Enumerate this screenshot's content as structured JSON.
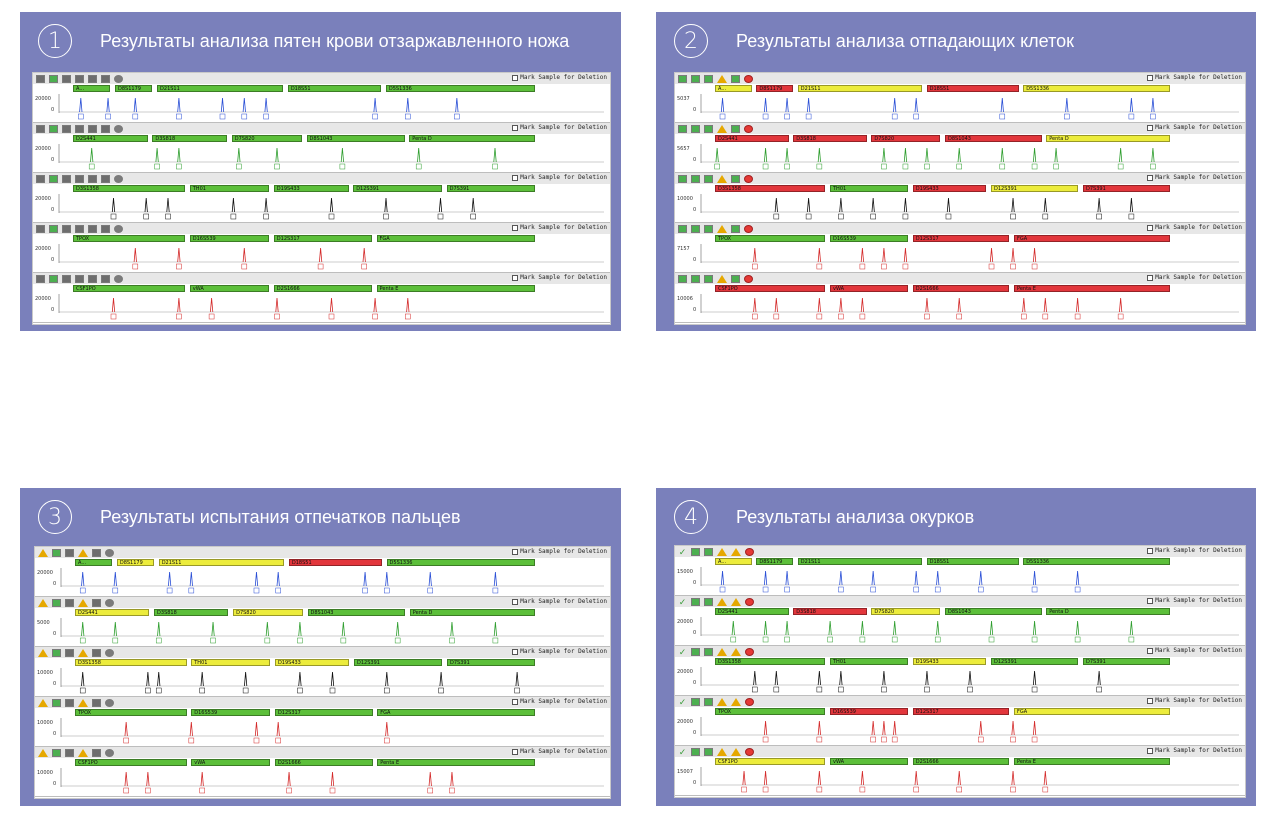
{
  "mark_label": "Mark Sample for Deletion",
  "panels": [
    {
      "number": "1",
      "title": "Результаты анализа пятен крови отзаржавленного ножа",
      "toolbar_icons": [
        "gray-square-icon",
        "green-square-icon",
        "gray-square-icon",
        "gray-square-icon",
        "gray-square-icon",
        "gray-square-icon",
        "gray-circle-icon"
      ],
      "rows": [
        {
          "y_max": "20000",
          "color": "#2a4fd6",
          "loci": [
            [
              "A...",
              "lg"
            ],
            [
              "D8S1179",
              "lg"
            ],
            [
              "D21S11",
              "lg"
            ],
            [
              "D18S51",
              "lg"
            ],
            [
              "D5S1336",
              "lg"
            ]
          ]
        },
        {
          "y_max": "20000",
          "color": "#2e9e2e",
          "loci": [
            [
              "D2S441",
              "lg"
            ],
            [
              "D3S818",
              "lg"
            ],
            [
              "D7S820",
              "lg"
            ],
            [
              "D8S1043",
              "lg"
            ],
            [
              "Penta D",
              "lg"
            ]
          ]
        },
        {
          "y_max": "20000",
          "color": "#111111",
          "loci": [
            [
              "D3S1358",
              "lg"
            ],
            [
              "TH01",
              "lg"
            ],
            [
              "D19S433",
              "lg"
            ],
            [
              "D12S391",
              "lg"
            ],
            [
              "D7S391",
              "lg"
            ]
          ]
        },
        {
          "y_max": "20000",
          "color": "#d42a2a",
          "loci": [
            [
              "TPOX",
              "lg"
            ],
            [
              "D16S539",
              "lg"
            ],
            [
              "D12S317",
              "lg"
            ],
            [
              "FGA",
              "lg"
            ]
          ]
        },
        {
          "y_max": "20000",
          "color": "#d42a2a",
          "loci": [
            [
              "CSF1PO",
              "lg"
            ],
            [
              "vWA",
              "lg"
            ],
            [
              "D2S1666",
              "lg"
            ],
            [
              "Penta E",
              "lg"
            ]
          ]
        }
      ]
    },
    {
      "number": "2",
      "title": "Результаты анализа отпадающих клеток",
      "toolbar_icons": [
        "green-square-icon",
        "green-square-icon",
        "green-square-icon",
        "warning-icon",
        "green-square-icon",
        "red-circle-icon"
      ],
      "rows": [
        {
          "y_max": "5037",
          "color": "#2a4fd6",
          "loci": [
            [
              "A...",
              "ly"
            ],
            [
              "D8S1179",
              "lr"
            ],
            [
              "D21S11",
              "ly"
            ],
            [
              "D18S51",
              "lr"
            ],
            [
              "D5S1336",
              "ly"
            ]
          ]
        },
        {
          "y_max": "5657",
          "color": "#2e9e2e",
          "loci": [
            [
              "D2S441",
              "lr"
            ],
            [
              "D3S818",
              "lr"
            ],
            [
              "D7S820",
              "lr"
            ],
            [
              "D8S1043",
              "lr"
            ],
            [
              "Penta D",
              "ly"
            ]
          ]
        },
        {
          "y_max": "10000",
          "color": "#111111",
          "loci": [
            [
              "D3S1358",
              "lr"
            ],
            [
              "TH01",
              "lg"
            ],
            [
              "D19S433",
              "lr"
            ],
            [
              "D12S391",
              "ly"
            ],
            [
              "D7S391",
              "lr"
            ]
          ]
        },
        {
          "y_max": "7157",
          "color": "#d42a2a",
          "loci": [
            [
              "TPOX",
              "lg"
            ],
            [
              "D16S539",
              "lg"
            ],
            [
              "D12S317",
              "lr"
            ],
            [
              "FGA",
              "lr"
            ]
          ]
        },
        {
          "y_max": "10006",
          "color": "#d42a2a",
          "loci": [
            [
              "CSF1PO",
              "lr"
            ],
            [
              "vWA",
              "lr"
            ],
            [
              "D2S1666",
              "lr"
            ],
            [
              "Penta E",
              "lr"
            ]
          ]
        }
      ]
    },
    {
      "number": "3",
      "title": "Результаты испытания отпечатков пальцев",
      "toolbar_icons": [
        "warning-icon",
        "green-square-icon",
        "gray-square-icon",
        "warning-icon",
        "gray-square-icon",
        "gray-circle-icon"
      ],
      "rows": [
        {
          "y_max": "20000",
          "color": "#2a4fd6",
          "loci": [
            [
              "A...",
              "lg"
            ],
            [
              "D8S1179",
              "ly"
            ],
            [
              "D21S11",
              "ly"
            ],
            [
              "D18S51",
              "lr"
            ],
            [
              "D5S1336",
              "lg"
            ]
          ]
        },
        {
          "y_max": "5000",
          "color": "#2e9e2e",
          "loci": [
            [
              "D2S441",
              "ly"
            ],
            [
              "D3S818",
              "lg"
            ],
            [
              "D7S820",
              "ly"
            ],
            [
              "D8S1043",
              "lg"
            ],
            [
              "Penta D",
              "lg"
            ]
          ]
        },
        {
          "y_max": "10000",
          "color": "#111111",
          "loci": [
            [
              "D3S1358",
              "ly"
            ],
            [
              "TH01",
              "ly"
            ],
            [
              "D19S433",
              "ly"
            ],
            [
              "D12S391",
              "lg"
            ],
            [
              "D7S391",
              "lg"
            ]
          ]
        },
        {
          "y_max": "10000",
          "color": "#d42a2a",
          "loci": [
            [
              "TPOX",
              "lg"
            ],
            [
              "D16S539",
              "lg"
            ],
            [
              "D12S317",
              "lg"
            ],
            [
              "FGA",
              "lg"
            ]
          ]
        },
        {
          "y_max": "10000",
          "color": "#d42a2a",
          "loci": [
            [
              "CSF1PO",
              "lg"
            ],
            [
              "vWA",
              "lg"
            ],
            [
              "D2S1666",
              "lg"
            ],
            [
              "Penta E",
              "lg"
            ]
          ]
        }
      ]
    },
    {
      "number": "4",
      "title": "Результаты анализа окурков",
      "toolbar_icons": [
        "check-icon",
        "green-square-icon",
        "green-square-icon",
        "warning-icon",
        "warning-icon",
        "red-circle-icon"
      ],
      "rows": [
        {
          "y_max": "15000",
          "color": "#2a4fd6",
          "loci": [
            [
              "A...",
              "ly"
            ],
            [
              "D8S1179",
              "lg"
            ],
            [
              "D21S11",
              "lg"
            ],
            [
              "D18S51",
              "lg"
            ],
            [
              "D5S1336",
              "lg"
            ]
          ]
        },
        {
          "y_max": "20000",
          "color": "#2e9e2e",
          "loci": [
            [
              "D2S441",
              "lg"
            ],
            [
              "D3S818",
              "lr"
            ],
            [
              "D7S820",
              "ly"
            ],
            [
              "D8S1043",
              "lg"
            ],
            [
              "Penta D",
              "lg"
            ]
          ]
        },
        {
          "y_max": "20000",
          "color": "#111111",
          "loci": [
            [
              "D3S1358",
              "lg"
            ],
            [
              "TH01",
              "lg"
            ],
            [
              "D19S433",
              "ly"
            ],
            [
              "D12S391",
              "lg"
            ],
            [
              "D7S391",
              "lg"
            ]
          ]
        },
        {
          "y_max": "20000",
          "color": "#d42a2a",
          "loci": [
            [
              "TPOX",
              "lg"
            ],
            [
              "D16S539",
              "lr"
            ],
            [
              "D12S317",
              "lr"
            ],
            [
              "FGA",
              "ly"
            ]
          ]
        },
        {
          "y_max": "15007",
          "color": "#d42a2a",
          "loci": [
            [
              "CSF1PO",
              "ly"
            ],
            [
              "vWA",
              "lg"
            ],
            [
              "D2S1666",
              "lg"
            ],
            [
              "Penta E",
              "lg"
            ]
          ]
        }
      ]
    }
  ]
}
